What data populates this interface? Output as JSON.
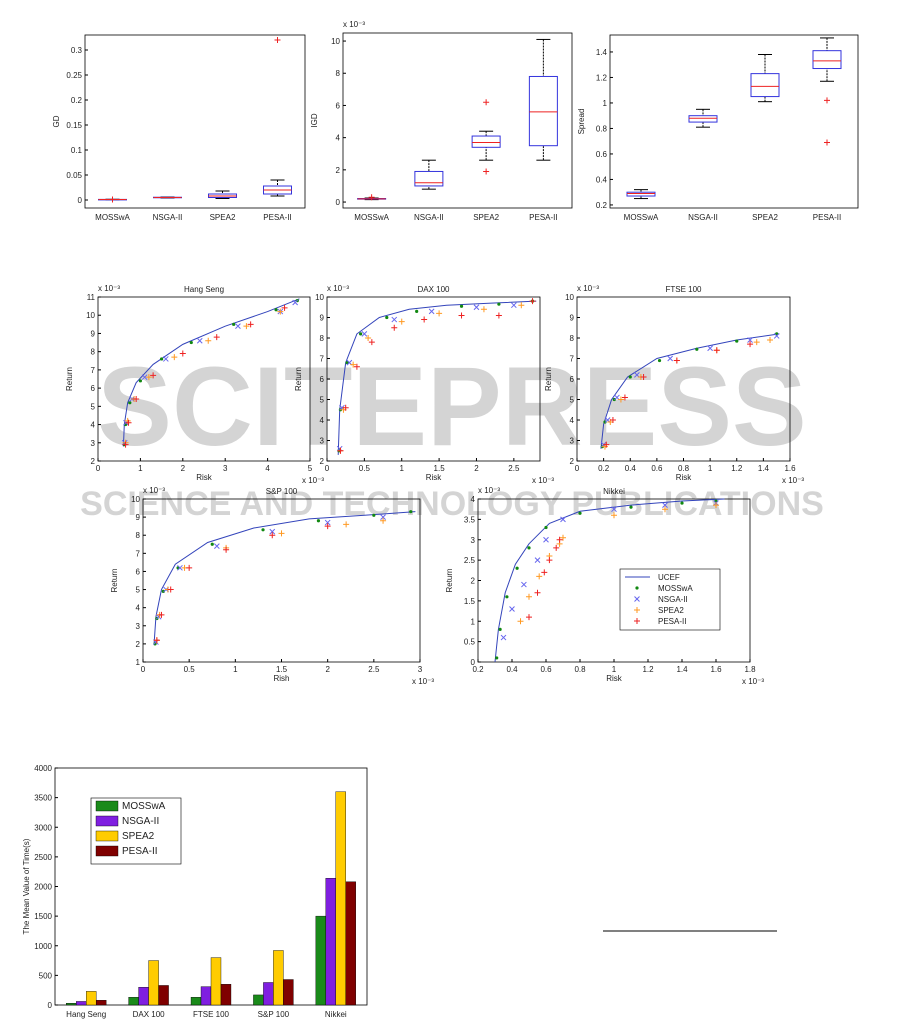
{
  "watermark": {
    "title": "SCITEPRESS",
    "subtitle": "SCIENCE AND TECHNOLOGY PUBLICATIONS"
  },
  "chart_data": [
    {
      "type": "box",
      "ylabel": "GD",
      "categories": [
        "MOSSwA",
        "NSGA-II",
        "SPEA2",
        "PESA-II"
      ],
      "ylim": [
        -0.016,
        0.33
      ],
      "yticks": [
        0,
        0.05,
        0.1,
        0.15,
        0.2,
        0.25,
        0.3
      ],
      "boxes": [
        {
          "min": 0.0005,
          "q1": 0.0008,
          "median": 0.001,
          "q3": 0.0012,
          "max": 0.0015,
          "outliers": [
            0.001
          ]
        },
        {
          "min": 0.004,
          "q1": 0.0045,
          "median": 0.005,
          "q3": 0.0055,
          "max": 0.006,
          "outliers": []
        },
        {
          "min": 0.003,
          "q1": 0.005,
          "median": 0.008,
          "q3": 0.012,
          "max": 0.018,
          "outliers": []
        },
        {
          "min": 0.008,
          "q1": 0.012,
          "median": 0.02,
          "q3": 0.028,
          "max": 0.04,
          "outliers": [
            0.32
          ]
        }
      ]
    },
    {
      "type": "box",
      "ylabel": "IGD",
      "y_exponent": "x 10⁻³",
      "categories": [
        "MOSSwA",
        "NSGA-II",
        "SPEA2",
        "PESA-II"
      ],
      "ylim": [
        -0.37,
        10.5
      ],
      "yticks": [
        0,
        2,
        4,
        6,
        8,
        10
      ],
      "boxes": [
        {
          "min": 0.15,
          "q1": 0.18,
          "median": 0.2,
          "q3": 0.22,
          "max": 0.25,
          "outliers": [
            0.3
          ]
        },
        {
          "min": 0.8,
          "q1": 1.0,
          "median": 1.2,
          "q3": 1.9,
          "max": 2.6,
          "outliers": []
        },
        {
          "min": 2.6,
          "q1": 3.4,
          "median": 3.7,
          "q3": 4.1,
          "max": 4.4,
          "outliers": [
            6.2,
            1.9
          ]
        },
        {
          "min": 2.6,
          "q1": 3.5,
          "median": 5.6,
          "q3": 7.8,
          "max": 10.1,
          "outliers": []
        }
      ]
    },
    {
      "type": "box",
      "ylabel": "Spread",
      "categories": [
        "MOSSwA",
        "NSGA-II",
        "SPEA2",
        "PESA-II"
      ],
      "ylim": [
        0.176,
        1.533
      ],
      "yticks": [
        0.2,
        0.4,
        0.6,
        0.8,
        1,
        1.2,
        1.4
      ],
      "boxes": [
        {
          "min": 0.25,
          "q1": 0.27,
          "median": 0.29,
          "q3": 0.3,
          "max": 0.32,
          "outliers": []
        },
        {
          "min": 0.81,
          "q1": 0.85,
          "median": 0.88,
          "q3": 0.9,
          "max": 0.95,
          "outliers": []
        },
        {
          "min": 1.01,
          "q1": 1.05,
          "median": 1.13,
          "q3": 1.23,
          "max": 1.38,
          "outliers": []
        },
        {
          "min": 1.17,
          "q1": 1.27,
          "median": 1.33,
          "q3": 1.41,
          "max": 1.51,
          "outliers": [
            1.02,
            0.69
          ]
        }
      ]
    },
    {
      "type": "scatter",
      "title": "Hang Seng",
      "xlabel": "Risk",
      "ylabel": "Return",
      "x_exponent": "x 10⁻³",
      "y_exponent": "x 10⁻³",
      "xlim": [
        0,
        5
      ],
      "xticks": [
        0,
        1,
        2,
        3,
        4,
        5
      ],
      "ylim": [
        2,
        11
      ],
      "yticks": [
        2,
        3,
        4,
        5,
        6,
        7,
        8,
        9,
        10,
        11
      ],
      "series": [
        {
          "style": "line",
          "color": "#3344bb",
          "x": [
            0.6,
            0.62,
            0.7,
            0.9,
            1.3,
            2,
            3,
            4,
            4.75
          ],
          "values": [
            2.8,
            4,
            5.2,
            6.3,
            7.3,
            8.4,
            9.4,
            10.2,
            10.9
          ]
        },
        {
          "style": "dot",
          "color": "#118811",
          "x": [
            0.62,
            0.65,
            0.75,
            1,
            1.5,
            2.2,
            3.2,
            4.2,
            4.7
          ],
          "values": [
            2.9,
            4,
            5.2,
            6.4,
            7.6,
            8.5,
            9.5,
            10.3,
            10.8
          ]
        },
        {
          "style": "x",
          "color": "#6666ee",
          "x": [
            0.63,
            0.66,
            0.8,
            1.1,
            1.6,
            2.4,
            3.3,
            4.3,
            4.65
          ],
          "values": [
            3,
            4.1,
            5.4,
            6.6,
            7.6,
            8.6,
            9.4,
            10.2,
            10.7
          ]
        },
        {
          "style": "plus",
          "color": "#ff9922",
          "x": [
            0.65,
            0.7,
            0.85,
            1.2,
            1.8,
            2.6,
            3.5,
            4.3
          ],
          "values": [
            3,
            4.2,
            5.4,
            6.6,
            7.7,
            8.6,
            9.4,
            10.2
          ]
        },
        {
          "style": "plus",
          "color": "#ee2222",
          "x": [
            0.65,
            0.72,
            0.9,
            1.3,
            2,
            2.8,
            3.6,
            4.4
          ],
          "values": [
            2.9,
            4.1,
            5.4,
            6.7,
            7.9,
            8.8,
            9.5,
            10.4
          ]
        }
      ]
    },
    {
      "type": "scatter",
      "title": "DAX 100",
      "xlabel": "Risk",
      "ylabel": "Return",
      "x_exponent": "x 10⁻³",
      "y_exponent": "x 10⁻³",
      "xlim": [
        0,
        2.85
      ],
      "xticks": [
        0,
        0.5,
        1,
        1.5,
        2,
        2.5
      ],
      "ylim": [
        2,
        10
      ],
      "yticks": [
        2,
        3,
        4,
        5,
        6,
        7,
        8,
        9,
        10
      ],
      "series": [
        {
          "style": "line",
          "color": "#3344bb",
          "x": [
            0.15,
            0.17,
            0.25,
            0.4,
            0.7,
            1.1,
            1.6,
            2.2,
            2.8
          ],
          "values": [
            2.3,
            4.5,
            6.8,
            8.2,
            9,
            9.4,
            9.6,
            9.7,
            9.8
          ]
        },
        {
          "style": "dot",
          "color": "#118811",
          "x": [
            0.16,
            0.18,
            0.27,
            0.45,
            0.8,
            1.2,
            1.8,
            2.3,
            2.75
          ],
          "values": [
            2.5,
            4.5,
            6.8,
            8.2,
            9,
            9.3,
            9.55,
            9.65,
            9.8
          ]
        },
        {
          "style": "x",
          "color": "#6666ee",
          "x": [
            0.17,
            0.2,
            0.3,
            0.5,
            0.9,
            1.4,
            2,
            2.5
          ],
          "values": [
            2.6,
            4.6,
            6.8,
            8.2,
            8.9,
            9.3,
            9.5,
            9.6
          ]
        },
        {
          "style": "plus",
          "color": "#ff9922",
          "x": [
            0.18,
            0.22,
            0.35,
            0.55,
            1,
            1.5,
            2.1,
            2.6
          ],
          "values": [
            2.5,
            4.5,
            6.7,
            8,
            8.8,
            9.2,
            9.4,
            9.6
          ]
        },
        {
          "style": "plus",
          "color": "#ee2222",
          "x": [
            0.18,
            0.25,
            0.4,
            0.6,
            0.9,
            1.3,
            1.8,
            2.3,
            2.75
          ],
          "values": [
            2.5,
            4.6,
            6.6,
            7.8,
            8.5,
            8.9,
            9.1,
            9.1,
            9.8
          ]
        }
      ]
    },
    {
      "type": "scatter",
      "title": "FTSE 100",
      "xlabel": "Risk",
      "ylabel": "Return",
      "x_exponent": "x 10⁻³",
      "y_exponent": "x 10⁻³",
      "xlim": [
        0,
        1.6
      ],
      "xticks": [
        0,
        0.2,
        0.4,
        0.6,
        0.8,
        1,
        1.2,
        1.4,
        1.6
      ],
      "ylim": [
        2,
        10
      ],
      "yticks": [
        2,
        3,
        4,
        5,
        6,
        7,
        8,
        9,
        10
      ],
      "series": [
        {
          "style": "line",
          "color": "#3344bb",
          "x": [
            0.18,
            0.2,
            0.26,
            0.38,
            0.6,
            0.9,
            1.2,
            1.52
          ],
          "values": [
            2.6,
            3.8,
            5,
            6.1,
            7,
            7.5,
            7.9,
            8.2
          ]
        },
        {
          "style": "dot",
          "color": "#118811",
          "x": [
            0.19,
            0.21,
            0.28,
            0.4,
            0.62,
            0.9,
            1.2,
            1.5
          ],
          "values": [
            2.7,
            3.9,
            5,
            6.1,
            6.9,
            7.45,
            7.85,
            8.2
          ]
        },
        {
          "style": "x",
          "color": "#6666ee",
          "x": [
            0.2,
            0.23,
            0.3,
            0.45,
            0.7,
            1,
            1.3,
            1.5
          ],
          "values": [
            2.8,
            4,
            5.1,
            6.2,
            7,
            7.5,
            7.9,
            8.1
          ]
        },
        {
          "style": "plus",
          "color": "#ff9922",
          "x": [
            0.21,
            0.25,
            0.33,
            0.48,
            0.75,
            1.05,
            1.35,
            1.45
          ],
          "values": [
            2.7,
            3.9,
            5,
            6.1,
            6.9,
            7.4,
            7.8,
            7.9
          ]
        },
        {
          "style": "plus",
          "color": "#ee2222",
          "x": [
            0.22,
            0.27,
            0.36,
            0.5,
            0.75,
            1.05,
            1.3
          ],
          "values": [
            2.8,
            4,
            5.1,
            6.1,
            6.9,
            7.4,
            7.7
          ]
        }
      ]
    },
    {
      "type": "scatter",
      "title": "S&P 100",
      "xlabel": "Rish",
      "ylabel": "Return",
      "x_exponent": "x 10⁻³",
      "y_exponent": "x 10⁻³",
      "xlim": [
        0,
        3
      ],
      "xticks": [
        0,
        0.5,
        1,
        1.5,
        2,
        2.5,
        3
      ],
      "ylim": [
        1,
        10
      ],
      "yticks": [
        1,
        2,
        3,
        4,
        5,
        6,
        7,
        8,
        9,
        10
      ],
      "series": [
        {
          "style": "line",
          "color": "#3344bb",
          "x": [
            0.12,
            0.14,
            0.2,
            0.35,
            0.7,
            1.2,
            1.8,
            2.4,
            2.95
          ],
          "values": [
            2,
            3.5,
            5,
            6.4,
            7.6,
            8.4,
            8.9,
            9.1,
            9.3
          ]
        },
        {
          "style": "dot",
          "color": "#118811",
          "x": [
            0.13,
            0.15,
            0.22,
            0.38,
            0.75,
            1.3,
            1.9,
            2.5,
            2.9
          ],
          "values": [
            2,
            3.4,
            4.9,
            6.2,
            7.5,
            8.3,
            8.8,
            9.1,
            9.3
          ]
        },
        {
          "style": "x",
          "color": "#6666ee",
          "x": [
            0.14,
            0.17,
            0.25,
            0.4,
            0.8,
            1.4,
            2,
            2.6
          ],
          "values": [
            2.1,
            3.5,
            5,
            6.2,
            7.4,
            8.2,
            8.7,
            9
          ]
        },
        {
          "style": "plus",
          "color": "#ff9922",
          "x": [
            0.15,
            0.18,
            0.27,
            0.45,
            0.9,
            1.5,
            2.2,
            2.6
          ],
          "values": [
            2.2,
            3.6,
            5,
            6.2,
            7.3,
            8.1,
            8.6,
            8.8
          ]
        },
        {
          "style": "plus",
          "color": "#ee2222",
          "x": [
            0.15,
            0.2,
            0.3,
            0.5,
            0.9,
            1.4,
            2
          ],
          "values": [
            2.2,
            3.6,
            5,
            6.2,
            7.2,
            8,
            8.5
          ]
        }
      ]
    },
    {
      "type": "scatter",
      "title": "Nikkei",
      "xlabel": "Risk",
      "ylabel": "Return",
      "x_exponent": "x 10⁻³",
      "y_exponent": "x 10⁻³",
      "legend": "lower right",
      "xlim": [
        0.2,
        1.8
      ],
      "xticks": [
        0.2,
        0.4,
        0.6,
        0.8,
        1,
        1.2,
        1.4,
        1.6,
        1.8
      ],
      "ylim": [
        0,
        4
      ],
      "yticks": [
        0,
        0.5,
        1,
        1.5,
        2,
        2.5,
        3,
        3.5,
        4
      ],
      "series": [
        {
          "name": "UCEF",
          "style": "line",
          "color": "#3344bb",
          "x": [
            0.3,
            0.32,
            0.36,
            0.42,
            0.5,
            0.62,
            0.8,
            1.1,
            1.4,
            1.65
          ],
          "values": [
            0,
            0.8,
            1.7,
            2.4,
            2.9,
            3.4,
            3.7,
            3.85,
            3.95,
            4
          ]
        },
        {
          "name": "MOSSwA",
          "style": "dot",
          "color": "#118811",
          "x": [
            0.31,
            0.33,
            0.37,
            0.43,
            0.5,
            0.6,
            0.8,
            1.1,
            1.4,
            1.6
          ],
          "values": [
            0.1,
            0.8,
            1.6,
            2.3,
            2.8,
            3.3,
            3.65,
            3.8,
            3.9,
            3.95
          ]
        },
        {
          "name": "NSGA-II",
          "style": "x",
          "color": "#6666ee",
          "x": [
            0.35,
            0.4,
            0.47,
            0.55,
            0.6,
            0.7,
            1,
            1.3,
            1.6
          ],
          "values": [
            0.6,
            1.3,
            1.9,
            2.5,
            3,
            3.5,
            3.75,
            3.85,
            3.9
          ]
        },
        {
          "name": "SPEA2",
          "style": "plus",
          "color": "#ff9922",
          "x": [
            0.45,
            0.5,
            0.56,
            0.62,
            0.68,
            0.7,
            1,
            1.3,
            1.6
          ],
          "values": [
            1,
            1.6,
            2.1,
            2.6,
            2.9,
            3.05,
            3.6,
            3.75,
            3.85
          ]
        },
        {
          "name": "PESA-II",
          "style": "plus",
          "color": "#ee2222",
          "x": [
            0.5,
            0.55,
            0.59,
            0.62,
            0.66,
            0.68
          ],
          "values": [
            1.1,
            1.7,
            2.2,
            2.5,
            2.8,
            3
          ]
        }
      ]
    },
    {
      "type": "bar",
      "ylabel": "The Mean Value of Time(s)",
      "legend": "upper left",
      "categories": [
        "Hang Seng",
        "DAX 100",
        "FTSE 100",
        "S&P 100",
        "Nikkei"
      ],
      "ylim": [
        0,
        4000
      ],
      "yticks": [
        0,
        500,
        1000,
        1500,
        2000,
        2500,
        3000,
        3500,
        4000
      ],
      "series": [
        {
          "name": "MOSSwA",
          "color": "#1a8a1a",
          "values": [
            30,
            130,
            130,
            170,
            1500
          ]
        },
        {
          "name": "NSGA-II",
          "color": "#7f1fe0",
          "values": [
            60,
            300,
            310,
            380,
            2140
          ]
        },
        {
          "name": "SPEA2",
          "color": "#ffcc00",
          "values": [
            230,
            750,
            800,
            920,
            3600
          ]
        },
        {
          "name": "PESA-II",
          "color": "#7f0000",
          "values": [
            80,
            330,
            350,
            430,
            2080
          ]
        }
      ]
    }
  ]
}
